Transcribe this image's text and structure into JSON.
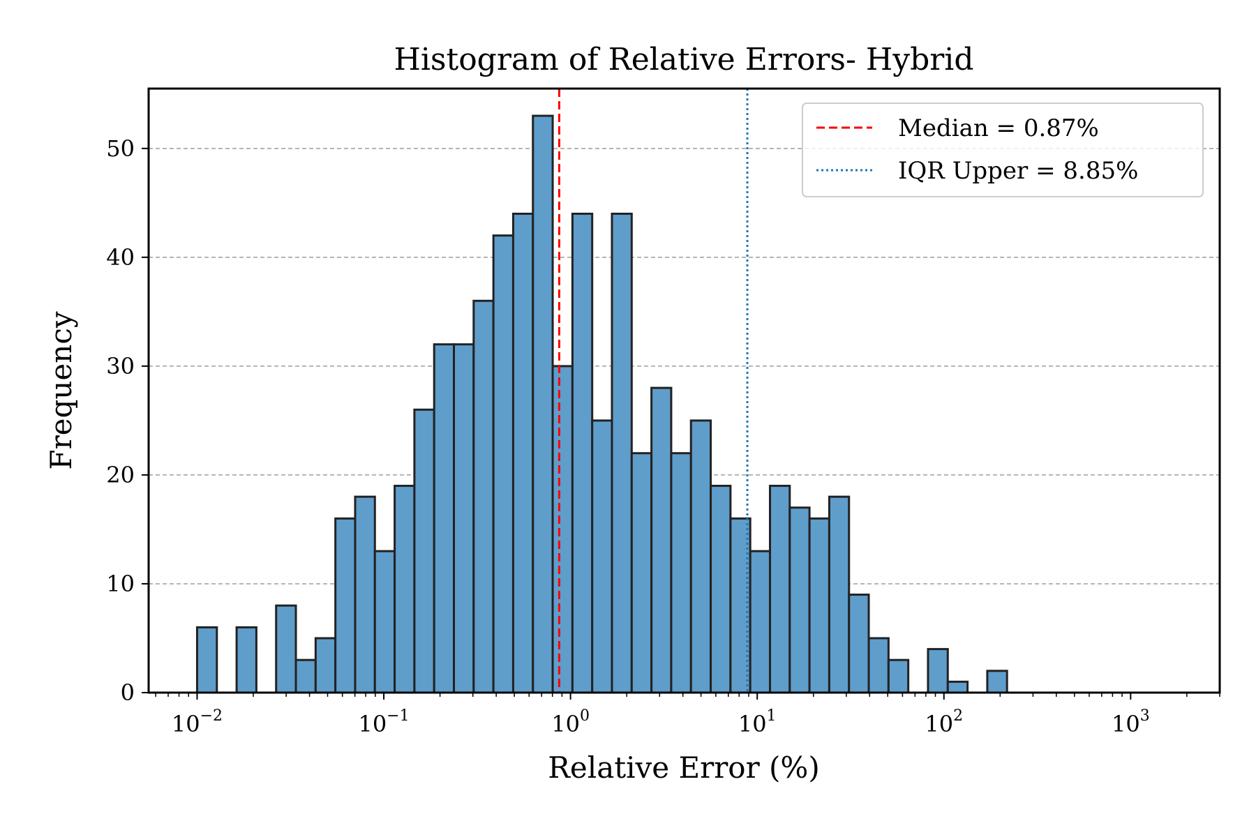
{
  "chart_data": {
    "type": "bar",
    "title": "Histogram of Relative Errors- Hybrid",
    "xlabel": "Relative Error (%)",
    "ylabel": "Frequency",
    "xscale": "log",
    "xlim": [
      0.0055,
      3000
    ],
    "ylim": [
      0,
      55.5
    ],
    "grid": "y-dashed",
    "legend_placement": "top-right",
    "bar_color": "#5f9dcb",
    "bar_edge_color": "#222222",
    "bin_edges": [
      0.01,
      0.01276,
      0.01628,
      0.02077,
      0.0265,
      0.03381,
      0.04314,
      0.05504,
      0.07022,
      0.08959,
      0.11431,
      0.14584,
      0.18607,
      0.2374,
      0.30289,
      0.38645,
      0.49306,
      0.62908,
      0.80262,
      1.02403,
      1.30652,
      1.66694,
      2.12679,
      2.71349,
      3.46204,
      4.41708,
      5.63558,
      7.19021,
      9.17381,
      11.70462,
      14.93357,
      19.05326,
      24.30933,
      31.01539,
      39.57141,
      50.48748,
      64.41503,
      82.18462,
      104.8562,
      133.7849,
      170.6876,
      217.7726
    ],
    "counts": [
      6,
      0,
      6,
      0,
      8,
      3,
      5,
      16,
      18,
      13,
      19,
      26,
      32,
      32,
      36,
      42,
      44,
      53,
      30,
      44,
      25,
      44,
      22,
      28,
      22,
      25,
      19,
      16,
      13,
      19,
      17,
      16,
      18,
      9,
      5,
      3,
      0,
      4,
      1,
      0,
      2
    ],
    "x_ticks": [
      {
        "base": "10",
        "exp": "−2",
        "value": 0.01
      },
      {
        "base": "10",
        "exp": "−1",
        "value": 0.1
      },
      {
        "base": "10",
        "exp": "0",
        "value": 1
      },
      {
        "base": "10",
        "exp": "1",
        "value": 10
      },
      {
        "base": "10",
        "exp": "2",
        "value": 100
      },
      {
        "base": "10",
        "exp": "3",
        "value": 1000
      }
    ],
    "y_ticks": [
      {
        "label": "0",
        "value": 0
      },
      {
        "label": "10",
        "value": 10
      },
      {
        "label": "20",
        "value": 20
      },
      {
        "label": "30",
        "value": 30
      },
      {
        "label": "40",
        "value": 40
      },
      {
        "label": "50",
        "value": 50
      }
    ],
    "reference_lines": [
      {
        "name": "Median = 0.87%",
        "value": 0.87,
        "color": "#ff0000",
        "style": "dashed"
      },
      {
        "name": "IQR Upper = 8.85%",
        "value": 8.85,
        "color": "#1f77b4",
        "style": "dotted"
      }
    ]
  }
}
